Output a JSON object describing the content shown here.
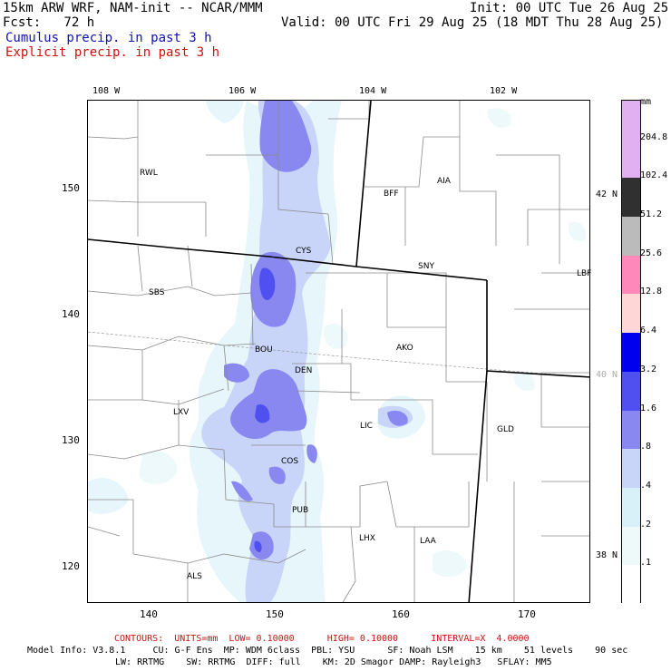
{
  "header": {
    "model_line": "15km ARW WRF, NAM-init -- NCAR/MMM",
    "init_line": "Init: 00 UTC Tue 26 Aug 25",
    "fcst_line": "Fcst:   72 h",
    "valid_line": "Valid: 00 UTC Fri 29 Aug 25 (18 MDT Thu 28 Aug 25)",
    "field_1": "Cumulus precip. in past 3 h",
    "field_2": "Explicit precip. in past 3 h",
    "field_1_color": "#1010b0",
    "field_2_color": "#d01010"
  },
  "axes": {
    "top_lon_labels": [
      "108 W",
      "106 W",
      "104 W",
      "102 W"
    ],
    "left_grid_labels": [
      "150",
      "140",
      "130",
      "120"
    ],
    "bottom_grid_labels": [
      "140",
      "150",
      "160",
      "170"
    ],
    "right_lat_labels": [
      "42 N",
      "40 N",
      "38 N"
    ]
  },
  "cities": [
    {
      "name": "RWL"
    },
    {
      "name": "BFF"
    },
    {
      "name": "AIA"
    },
    {
      "name": "CYS"
    },
    {
      "name": "SNY"
    },
    {
      "name": "LBF"
    },
    {
      "name": "SBS"
    },
    {
      "name": "BOU"
    },
    {
      "name": "DEN"
    },
    {
      "name": "AKO"
    },
    {
      "name": "LXV"
    },
    {
      "name": "LIC"
    },
    {
      "name": "GLD"
    },
    {
      "name": "COS"
    },
    {
      "name": "PUB"
    },
    {
      "name": "LHX"
    },
    {
      "name": "LAA"
    },
    {
      "name": "ALS"
    }
  ],
  "legend": {
    "unit": "mm",
    "levels": [
      {
        "label": "204.8",
        "color": "#e0b0f0"
      },
      {
        "label": "102.4",
        "color": "#303030"
      },
      {
        "label": "51.2",
        "color": "#bbbbbb"
      },
      {
        "label": "25.6",
        "color": "#ff88bb"
      },
      {
        "label": "12.8",
        "color": "#ffd6d6"
      },
      {
        "label": "6.4",
        "color": "#0000ee"
      },
      {
        "label": "3.2",
        "color": "#5050f0"
      },
      {
        "label": "1.6",
        "color": "#8888f0"
      },
      {
        "label": ".8",
        "color": "#c8d4f8"
      },
      {
        "label": ".4",
        "color": "#d8f0f8"
      },
      {
        "label": ".2",
        "color": "#eefafa"
      },
      {
        "label": ".1",
        "color": "#ffffff"
      }
    ],
    "top_color": "#e0b0f0"
  },
  "footer": {
    "contours": "CONTOURS:  UNITS=mm  LOW= 0.10000      HIGH= 0.10000      INTERVAL=X  4.0000",
    "model_info_1": "Model Info: V3.8.1     CU: G-F Ens  MP: WDM 6class  PBL: YSU      SF: Noah LSM    15 km    51 levels    90 sec",
    "model_info_2": "LW: RRTMG    SW: RRTMG  DIFF: full    KM: 2D Smagor DAMP: Rayleigh3   SFLAY: MM5"
  }
}
